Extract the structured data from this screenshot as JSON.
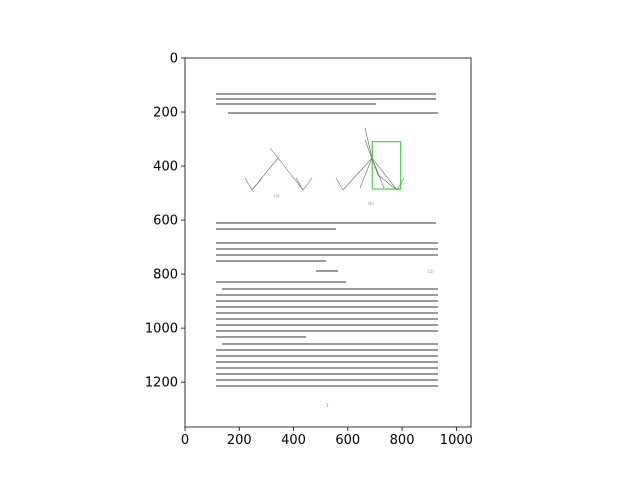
{
  "figure": {
    "x_axis": {
      "ticks": [
        0,
        200,
        400,
        600,
        800,
        1000
      ],
      "tick_labels": [
        "0",
        "200",
        "400",
        "600",
        "800",
        "1000"
      ],
      "range": [
        0,
        1054
      ]
    },
    "y_axis": {
      "ticks": [
        0,
        200,
        400,
        600,
        800,
        1000,
        1200
      ],
      "tick_labels": [
        "0",
        "200",
        "400",
        "600",
        "800",
        "1000",
        "1200"
      ],
      "range": [
        0,
        1366
      ],
      "inverted": true
    },
    "highlight_box": {
      "color": "#22c322",
      "x_range": [
        690,
        795
      ],
      "y_range": [
        310,
        485
      ]
    },
    "page_number": "1",
    "equation_number": "(2)"
  }
}
